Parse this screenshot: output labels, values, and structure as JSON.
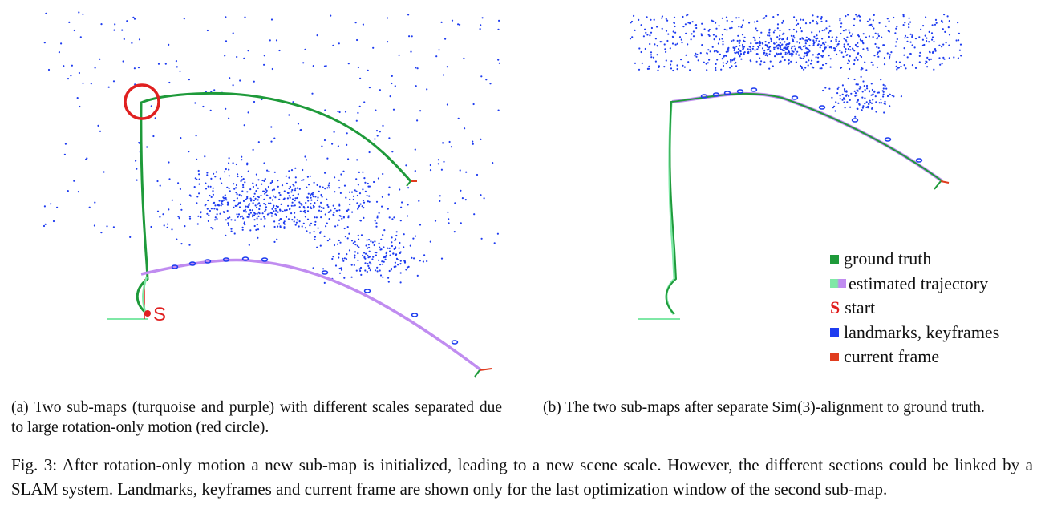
{
  "figure_a": {
    "start_label": "S"
  },
  "legend": {
    "items": [
      {
        "label": "ground truth",
        "color": "#1e9a3a"
      },
      {
        "label": "estimated trajectory",
        "color_a": "#7fe8a6",
        "color_b": "#c08cf0"
      },
      {
        "label": "start",
        "marker": "S",
        "color": "#e02020"
      },
      {
        "label": "landmarks, keyframes",
        "color": "#1e3cf0"
      },
      {
        "label": "current frame",
        "color": "#e03c1e"
      }
    ]
  },
  "subcaption_a": "(a) Two sub-maps (turquoise and purple) with different scales separated due to large rotation-only motion (red circle).",
  "subcaption_b_before": "(b) The two sub-maps after separate ",
  "subcaption_b_sim": "Sim(3)",
  "subcaption_b_after": "-alignment to ground truth.",
  "main_caption": "Fig. 3: After rotation-only motion a new sub-map is initialized, leading to a new scene scale. However, the different sections could be linked by a SLAM system. Landmarks, keyframes and current frame are shown only for the last optimization window of the second sub-map.",
  "colors": {
    "ground_truth": "#1e9a3a",
    "estimate_first": "#7fe8a6",
    "estimate_second": "#c08cf0",
    "landmarks": "#1e3cf0",
    "start": "#e02020",
    "current_frame": "#e03c1e"
  }
}
